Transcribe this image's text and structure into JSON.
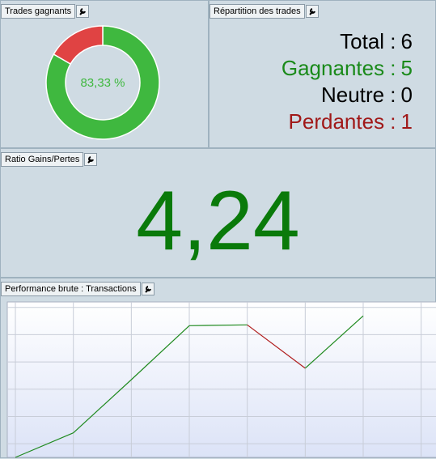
{
  "panels": {
    "trades": {
      "title": "Trades gagnants"
    },
    "repartition": {
      "title": "Répartition des trades",
      "rows": [
        {
          "label": "Total :",
          "value": 6,
          "color": "#000000"
        },
        {
          "label": "Gagnantes :",
          "value": 5,
          "color": "#1a8a1a"
        },
        {
          "label": "Neutre :",
          "value": 0,
          "color": "#000000"
        },
        {
          "label": "Perdantes :",
          "value": 1,
          "color": "#a01818"
        }
      ]
    },
    "ratio": {
      "title": "Ratio Gains/Pertes",
      "value": {
        "value": 4.24,
        "label": "4,24"
      },
      "color": "#0a7a0a"
    },
    "performance": {
      "title": "Performance brute : Transactions"
    }
  },
  "chart_data": [
    {
      "type": "pie",
      "values": [
        83.33,
        16.67
      ],
      "value_labels": [
        "83,33 %",
        null
      ],
      "colors": [
        "#3fb83f",
        "#e04343"
      ],
      "donut": true
    },
    {
      "type": "line",
      "x": [
        0,
        1,
        2,
        3,
        4,
        5,
        6
      ],
      "values": [
        0,
        0.9,
        2.85,
        4.83,
        4.86,
        3.27,
        5.19
      ],
      "up_color": "#1f8a1f",
      "down_color": "#b01c1c",
      "xlim": [
        -0.14,
        7.27
      ],
      "ylim": [
        0,
        5.7
      ],
      "xticks": [
        0,
        1,
        2,
        3,
        4,
        5,
        6,
        7
      ],
      "yticks": [
        0.5,
        1.5,
        2.5,
        3.5,
        4.5,
        5.5
      ],
      "grid": true
    }
  ]
}
